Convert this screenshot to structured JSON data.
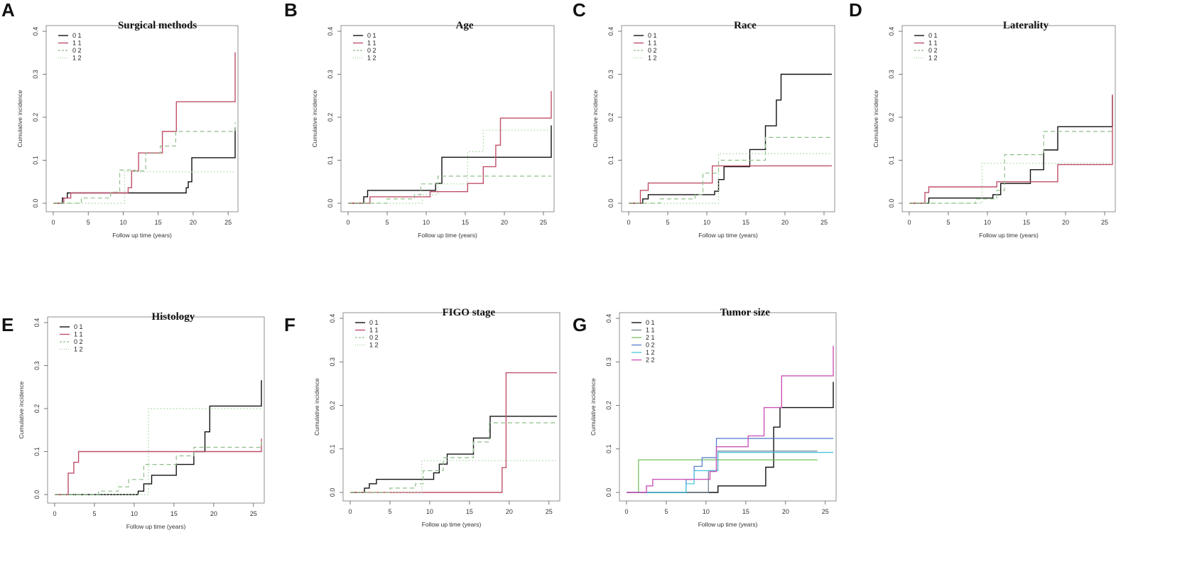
{
  "figure": {
    "panels": [
      "A",
      "B",
      "C",
      "D",
      "E",
      "F",
      "G"
    ]
  },
  "chart_data": [
    {
      "panel": "A",
      "type": "line",
      "title": "Surgical methods",
      "xlabel": "Follow up time (years)",
      "ylabel": "Cumulative incidence",
      "xlim": [
        0,
        26
      ],
      "ylim": [
        0,
        0.4
      ],
      "xticks": [
        0,
        5,
        10,
        15,
        20,
        25
      ],
      "yticks": [
        0.0,
        0.1,
        0.2,
        0.3,
        0.4
      ],
      "legend_position": "top-left",
      "series": [
        {
          "name": "0 1",
          "color": "#111111",
          "dash": "solid",
          "width": 1.4,
          "x": [
            0,
            1,
            1.3,
            2,
            19,
            19.3,
            19.8,
            26
          ],
          "y": [
            0,
            0,
            0.012,
            0.024,
            0.036,
            0.05,
            0.106,
            0.176
          ]
        },
        {
          "name": "1 1",
          "color": "#c0506a",
          "dash": "solid",
          "width": 1.4,
          "x": [
            0,
            1,
            1.5,
            2.5,
            10.7,
            11.2,
            12.2,
            15.6,
            17.6,
            26
          ],
          "y": [
            0,
            0,
            0.012,
            0.024,
            0.036,
            0.075,
            0.117,
            0.167,
            0.236,
            0.351
          ]
        },
        {
          "name": "0 2",
          "color": "#8fbf8a",
          "dash": "dashed",
          "width": 1.2,
          "x": [
            0,
            2.5,
            4,
            8.2,
            9.5,
            11.7,
            13.2,
            15.3,
            17.5,
            26
          ],
          "y": [
            0,
            0,
            0.012,
            0.026,
            0.077,
            0.075,
            0.116,
            0.133,
            0.167,
            0.188
          ]
        },
        {
          "name": "1 2",
          "color": "#9fd49a",
          "dash": "dotted",
          "width": 1.2,
          "x": [
            0,
            9.3,
            10.2,
            26
          ],
          "y": [
            0,
            0,
            0.073,
            0.073
          ]
        }
      ]
    },
    {
      "panel": "B",
      "type": "line",
      "title": "Age",
      "xlabel": "Follow up time (years)",
      "ylabel": "Cumulative incidence",
      "xlim": [
        0,
        26
      ],
      "ylim": [
        0,
        0.4
      ],
      "xticks": [
        0,
        5,
        10,
        15,
        20,
        25
      ],
      "yticks": [
        0.0,
        0.1,
        0.2,
        0.3,
        0.4
      ],
      "legend_position": "top-left",
      "series": [
        {
          "name": "0 1",
          "color": "#111111",
          "dash": "solid",
          "width": 1.4,
          "x": [
            0,
            1.2,
            2,
            2.5,
            11.2,
            12,
            26
          ],
          "y": [
            0,
            0,
            0.015,
            0.03,
            0.046,
            0.107,
            0.181
          ]
        },
        {
          "name": "1 1",
          "color": "#c0506a",
          "dash": "solid",
          "width": 1.4,
          "x": [
            0,
            1.3,
            2.8,
            10.5,
            15.3,
            17.3,
            18.9,
            19.5,
            26
          ],
          "y": [
            0,
            0,
            0.015,
            0.027,
            0.046,
            0.085,
            0.135,
            0.198,
            0.261
          ]
        },
        {
          "name": "0 2",
          "color": "#8fbf8a",
          "dash": "dashed",
          "width": 1.2,
          "x": [
            0,
            2.5,
            5,
            8.5,
            9.3,
            11.5,
            26
          ],
          "y": [
            0,
            0,
            0.01,
            0.02,
            0.045,
            0.063,
            0.063
          ]
        },
        {
          "name": "1 2",
          "color": "#9fd49a",
          "dash": "dotted",
          "width": 1.2,
          "x": [
            0,
            8.5,
            9.5,
            11.5,
            15.3,
            17.3,
            26
          ],
          "y": [
            0,
            0,
            0.02,
            0.045,
            0.12,
            0.17,
            0.17
          ]
        }
      ]
    },
    {
      "panel": "C",
      "type": "line",
      "title": "Race",
      "xlabel": "Follow up time (years)",
      "ylabel": "Cumulative incidence",
      "xlim": [
        0,
        26
      ],
      "ylim": [
        0,
        0.4
      ],
      "xticks": [
        0,
        5,
        10,
        15,
        20,
        25
      ],
      "yticks": [
        0.0,
        0.1,
        0.2,
        0.3,
        0.4
      ],
      "legend_position": "top-left",
      "series": [
        {
          "name": "0 1",
          "color": "#111111",
          "dash": "solid",
          "width": 1.4,
          "x": [
            0,
            1.2,
            1.8,
            2.5,
            11,
            11.5,
            12.2,
            15.5,
            17.5,
            18.9,
            19.5,
            26
          ],
          "y": [
            0,
            0,
            0.01,
            0.02,
            0.028,
            0.055,
            0.085,
            0.125,
            0.18,
            0.24,
            0.3,
            0.3
          ]
        },
        {
          "name": "1 1",
          "color": "#c0506a",
          "dash": "solid",
          "width": 1.4,
          "x": [
            0,
            1,
            1.5,
            2.5,
            10.7,
            26
          ],
          "y": [
            0,
            0,
            0.03,
            0.047,
            0.087,
            0.087
          ]
        },
        {
          "name": "0 2",
          "color": "#8fbf8a",
          "dash": "dashed",
          "width": 1.2,
          "x": [
            0,
            2.5,
            4,
            8.5,
            9.5,
            11.5,
            15.5,
            17.5,
            26
          ],
          "y": [
            0,
            0,
            0.01,
            0.02,
            0.07,
            0.1,
            0.1,
            0.153,
            0.153
          ]
        },
        {
          "name": "1 2",
          "color": "#9fd49a",
          "dash": "dotted",
          "width": 1.2,
          "x": [
            0,
            8.5,
            11.5,
            17.5,
            26
          ],
          "y": [
            0,
            0,
            0.115,
            0.115,
            0.115
          ]
        }
      ]
    },
    {
      "panel": "D",
      "type": "line",
      "title": "Laterality",
      "xlabel": "Follow up time (years)",
      "ylabel": "Cumulative incidence",
      "xlim": [
        0,
        26
      ],
      "ylim": [
        0,
        0.4
      ],
      "xticks": [
        0,
        5,
        10,
        15,
        20,
        25
      ],
      "yticks": [
        0.0,
        0.1,
        0.2,
        0.3,
        0.4
      ],
      "legend_position": "top-left",
      "series": [
        {
          "name": "0 1",
          "color": "#111111",
          "dash": "solid",
          "width": 1.4,
          "x": [
            0,
            1.2,
            2.5,
            10.7,
            11.7,
            15.5,
            17.2,
            19,
            26
          ],
          "y": [
            0,
            0,
            0.012,
            0.02,
            0.046,
            0.078,
            0.124,
            0.178,
            0.25
          ]
        },
        {
          "name": "1 1",
          "color": "#c0506a",
          "dash": "solid",
          "width": 1.4,
          "x": [
            0,
            1.5,
            2,
            2.5,
            11.2,
            19,
            26
          ],
          "y": [
            0,
            0,
            0.025,
            0.038,
            0.05,
            0.09,
            0.253
          ]
        },
        {
          "name": "0 2",
          "color": "#8fbf8a",
          "dash": "dashed",
          "width": 1.2,
          "x": [
            0,
            2.5,
            8.5,
            11.2,
            12.2,
            17.2,
            26
          ],
          "y": [
            0,
            0,
            0.01,
            0.03,
            0.113,
            0.167,
            0.167
          ]
        },
        {
          "name": "1 2",
          "color": "#9fd49a",
          "dash": "dotted",
          "width": 1.2,
          "x": [
            0,
            8.5,
            9.3,
            26
          ],
          "y": [
            0,
            0,
            0.093,
            0.093
          ]
        }
      ]
    },
    {
      "panel": "E",
      "type": "line",
      "title": "Histology",
      "xlabel": "Follow up time (years)",
      "ylabel": "Cumulative incidence",
      "xlim": [
        0,
        26
      ],
      "ylim": [
        0,
        0.4
      ],
      "xticks": [
        0,
        5,
        10,
        15,
        20,
        25
      ],
      "yticks": [
        0.0,
        0.1,
        0.2,
        0.3,
        0.4
      ],
      "legend_position": "top-left",
      "series": [
        {
          "name": "0 1",
          "color": "#111111",
          "dash": "solid",
          "width": 1.4,
          "x": [
            0,
            1.2,
            10.5,
            11.2,
            12.2,
            15.3,
            17.5,
            18.9,
            19.5,
            26
          ],
          "y": [
            0,
            0,
            0.008,
            0.025,
            0.045,
            0.07,
            0.1,
            0.146,
            0.206,
            0.266
          ]
        },
        {
          "name": "1 1",
          "color": "#c0506a",
          "dash": "solid",
          "width": 1.4,
          "x": [
            0,
            1.2,
            1.7,
            2.4,
            3,
            26
          ],
          "y": [
            0,
            0,
            0.05,
            0.075,
            0.1,
            0.13
          ]
        },
        {
          "name": "0 2",
          "color": "#8fbf8a",
          "dash": "dashed",
          "width": 1.2,
          "x": [
            0,
            1.2,
            5.5,
            8,
            9.3,
            11.2,
            15.3,
            17.5,
            26
          ],
          "y": [
            0,
            0,
            0.008,
            0.018,
            0.035,
            0.07,
            0.09,
            0.11,
            0.13
          ]
        },
        {
          "name": "1 2",
          "color": "#9fd49a",
          "dash": "dotted",
          "width": 1.2,
          "x": [
            0,
            11.2,
            11.8,
            26
          ],
          "y": [
            0,
            0,
            0.2,
            0.2
          ]
        }
      ]
    },
    {
      "panel": "F",
      "type": "line",
      "title": "FIGO stage",
      "xlabel": "Follow up time (years)",
      "ylabel": "Cumulative incidence",
      "xlim": [
        0,
        26
      ],
      "ylim": [
        0,
        0.4
      ],
      "xticks": [
        0,
        5,
        10,
        15,
        20,
        25
      ],
      "yticks": [
        0.0,
        0.1,
        0.2,
        0.3,
        0.4
      ],
      "legend_position": "top-left",
      "series": [
        {
          "name": "0 1",
          "color": "#111111",
          "dash": "solid",
          "width": 1.4,
          "x": [
            0,
            1.3,
            1.8,
            2.4,
            3.3,
            10.5,
            11.2,
            12.2,
            15.5,
            17.6,
            26
          ],
          "y": [
            0,
            0,
            0.01,
            0.02,
            0.03,
            0.045,
            0.065,
            0.088,
            0.125,
            0.175,
            0.175
          ]
        },
        {
          "name": "1 1",
          "color": "#c0506a",
          "dash": "solid",
          "width": 1.4,
          "x": [
            0,
            1.2,
            19.1,
            19.6,
            26
          ],
          "y": [
            0,
            0,
            0.057,
            0.275,
            0.275
          ]
        },
        {
          "name": "0 2",
          "color": "#8fbf8a",
          "dash": "dashed",
          "width": 1.2,
          "x": [
            0,
            2.5,
            5,
            8.2,
            9.2,
            11.7,
            15.5,
            17.5,
            26
          ],
          "y": [
            0,
            0,
            0.01,
            0.02,
            0.05,
            0.08,
            0.116,
            0.16,
            0.16
          ]
        },
        {
          "name": "1 2",
          "color": "#9fd49a",
          "dash": "dotted",
          "width": 1.2,
          "x": [
            0,
            8.5,
            9,
            26
          ],
          "y": [
            0,
            0,
            0.073,
            0.073
          ]
        }
      ]
    },
    {
      "panel": "G",
      "type": "line",
      "title": "Tumor size",
      "xlabel": "Follow up time (years)",
      "ylabel": "Cumulative incidence",
      "xlim": [
        0,
        26
      ],
      "ylim": [
        0,
        0.4
      ],
      "xticks": [
        0,
        5,
        10,
        15,
        20,
        25
      ],
      "yticks": [
        0.0,
        0.1,
        0.2,
        0.3,
        0.4
      ],
      "legend_position": "top-left",
      "series": [
        {
          "name": "0 1",
          "color": "#111111",
          "dash": "solid",
          "width": 1.4,
          "x": [
            0,
            1.2,
            11.5,
            14,
            17.5,
            18.5,
            19.3,
            26
          ],
          "y": [
            0,
            0,
            0.015,
            0.015,
            0.058,
            0.15,
            0.195,
            0.254
          ]
        },
        {
          "name": "1 1",
          "color": "#6b7a8f",
          "dash": "solid",
          "width": 1.2,
          "x": [
            0,
            1.5,
            10.3,
            11.3,
            24
          ],
          "y": [
            0,
            0,
            0.05,
            0.095,
            0.095
          ]
        },
        {
          "name": "2 1",
          "color": "#6fbf5a",
          "dash": "solid",
          "width": 1.2,
          "x": [
            0,
            1,
            1.5,
            24
          ],
          "y": [
            0,
            0,
            0.075,
            0.075
          ]
        },
        {
          "name": "0 2",
          "color": "#4a78c8",
          "dash": "solid",
          "width": 1.2,
          "x": [
            0,
            5,
            7.5,
            8.5,
            9.5,
            11.3,
            26
          ],
          "y": [
            0,
            0,
            0.03,
            0.06,
            0.08,
            0.124,
            0.124
          ]
        },
        {
          "name": "1 2",
          "color": "#3fc0d8",
          "dash": "solid",
          "width": 1.2,
          "x": [
            0,
            3,
            7.5,
            8.5,
            11.5,
            26
          ],
          "y": [
            0,
            0,
            0.02,
            0.05,
            0.092,
            0.092
          ]
        },
        {
          "name": "2 2",
          "color": "#cc55b8",
          "dash": "solid",
          "width": 1.4,
          "x": [
            0,
            1.5,
            2.5,
            3.3,
            10.5,
            11.3,
            15.3,
            17.3,
            19.5,
            26
          ],
          "y": [
            0,
            0,
            0.015,
            0.03,
            0.048,
            0.105,
            0.13,
            0.195,
            0.268,
            0.337
          ]
        }
      ]
    }
  ]
}
